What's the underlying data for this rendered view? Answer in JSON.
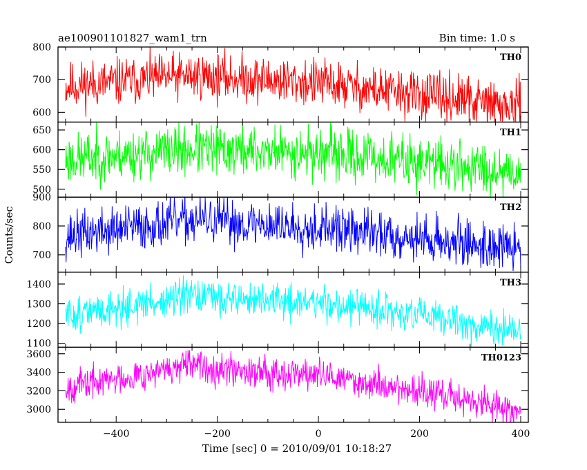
{
  "header": {
    "title": "ae100901101827_wam1_trn",
    "bin_time": "Bin time: 1.0 s"
  },
  "axis_labels": {
    "xlabel": "Time [sec] 0 = 2010/09/01 10:18:27",
    "ylabel": "Counts/sec"
  },
  "chart_data": [
    {
      "type": "line",
      "name": "TH0",
      "color": "#ff0000",
      "xlim": [
        -515,
        415
      ],
      "ylim": [
        570,
        800
      ],
      "yticks": [
        600,
        700,
        800
      ],
      "ytick_labels": [
        "600",
        "700",
        "800"
      ],
      "trend": [
        [
          -500,
          680
        ],
        [
          -250,
          712
        ],
        [
          0,
          690
        ],
        [
          400,
          615
        ]
      ],
      "noise": 36,
      "seed": 11
    },
    {
      "type": "line",
      "name": "TH1",
      "color": "#00ff00",
      "xlim": [
        -515,
        415
      ],
      "ylim": [
        480,
        670
      ],
      "yticks": [
        500,
        550,
        600,
        650
      ],
      "ytick_labels": [
        "500",
        "550",
        "600",
        "650"
      ],
      "trend": [
        [
          -500,
          575
        ],
        [
          -250,
          600
        ],
        [
          0,
          592
        ],
        [
          400,
          545
        ]
      ],
      "noise": 32,
      "seed": 23
    },
    {
      "type": "line",
      "name": "TH2",
      "color": "#0000ff",
      "xlim": [
        -515,
        415
      ],
      "ylim": [
        640,
        900
      ],
      "yticks": [
        700,
        800,
        900
      ],
      "ytick_labels": [
        "700",
        "800",
        "900"
      ],
      "trend": [
        [
          -500,
          765
        ],
        [
          -250,
          820
        ],
        [
          0,
          795
        ],
        [
          400,
          720
        ]
      ],
      "noise": 40,
      "seed": 37
    },
    {
      "type": "line",
      "name": "TH3",
      "color": "#00ffff",
      "xlim": [
        -515,
        415
      ],
      "ylim": [
        1080,
        1460
      ],
      "yticks": [
        1100,
        1200,
        1300,
        1400
      ],
      "ytick_labels": [
        "1100",
        "1200",
        "1300",
        "1400"
      ],
      "trend": [
        [
          -500,
          1240
        ],
        [
          -250,
          1335
        ],
        [
          0,
          1305
        ],
        [
          250,
          1220
        ],
        [
          400,
          1150
        ]
      ],
      "noise": 45,
      "seed": 51
    },
    {
      "type": "line",
      "name": "TH0123",
      "color": "#ff00ff",
      "xlim": [
        -515,
        415
      ],
      "ylim": [
        2860,
        3670
      ],
      "yticks": [
        3000,
        3200,
        3400,
        3600
      ],
      "ytick_labels": [
        "3000",
        "3200",
        "3400",
        "3600"
      ],
      "xticks": [
        -400,
        -200,
        0,
        200,
        400
      ],
      "xtick_labels": [
        "−400",
        "−200",
        "0",
        "200",
        "400"
      ],
      "trend": [
        [
          -500,
          3240
        ],
        [
          -250,
          3470
        ],
        [
          0,
          3370
        ],
        [
          250,
          3150
        ],
        [
          400,
          2980
        ]
      ],
      "noise": 85,
      "seed": 67
    }
  ]
}
